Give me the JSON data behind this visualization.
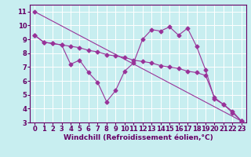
{
  "background_color": "#c8eef0",
  "grid_color": "#ffffff",
  "line_color": "#993399",
  "text_color": "#660066",
  "xlabel": "Windchill (Refroidissement éolien,°C)",
  "xlim": [
    -0.5,
    23.5
  ],
  "ylim": [
    3,
    11.5
  ],
  "yticks": [
    3,
    4,
    5,
    6,
    7,
    8,
    9,
    10,
    11
  ],
  "xticks": [
    0,
    1,
    2,
    3,
    4,
    5,
    6,
    7,
    8,
    9,
    10,
    11,
    12,
    13,
    14,
    15,
    16,
    17,
    18,
    19,
    20,
    21,
    22,
    23
  ],
  "line1_x": [
    0,
    23
  ],
  "line1_y": [
    11.0,
    3.1
  ],
  "line2_x": [
    0,
    1,
    2,
    3,
    4,
    5,
    6,
    7,
    8,
    9,
    10,
    11,
    12,
    13,
    14,
    15,
    16,
    17,
    18,
    19,
    20,
    21,
    22,
    23
  ],
  "line2_y": [
    9.3,
    8.8,
    8.7,
    8.6,
    8.5,
    8.4,
    8.2,
    8.1,
    7.9,
    7.8,
    7.7,
    7.5,
    7.4,
    7.3,
    7.1,
    7.0,
    6.9,
    6.7,
    6.6,
    6.4,
    4.8,
    4.3,
    3.7,
    3.1
  ],
  "line3_x": [
    0,
    1,
    2,
    3,
    4,
    5,
    6,
    7,
    8,
    9,
    10,
    11,
    12,
    13,
    14,
    15,
    16,
    17,
    18,
    19,
    20,
    21,
    22,
    23
  ],
  "line3_y": [
    9.3,
    8.8,
    8.7,
    8.6,
    7.2,
    7.5,
    6.6,
    5.9,
    4.5,
    5.3,
    6.7,
    7.3,
    9.0,
    9.7,
    9.6,
    9.9,
    9.3,
    9.8,
    8.5,
    6.8,
    4.7,
    4.3,
    3.8,
    3.1
  ],
  "xlabel_fontsize": 6.5,
  "tick_fontsize": 6,
  "marker_size": 2.5,
  "line_width": 0.8
}
